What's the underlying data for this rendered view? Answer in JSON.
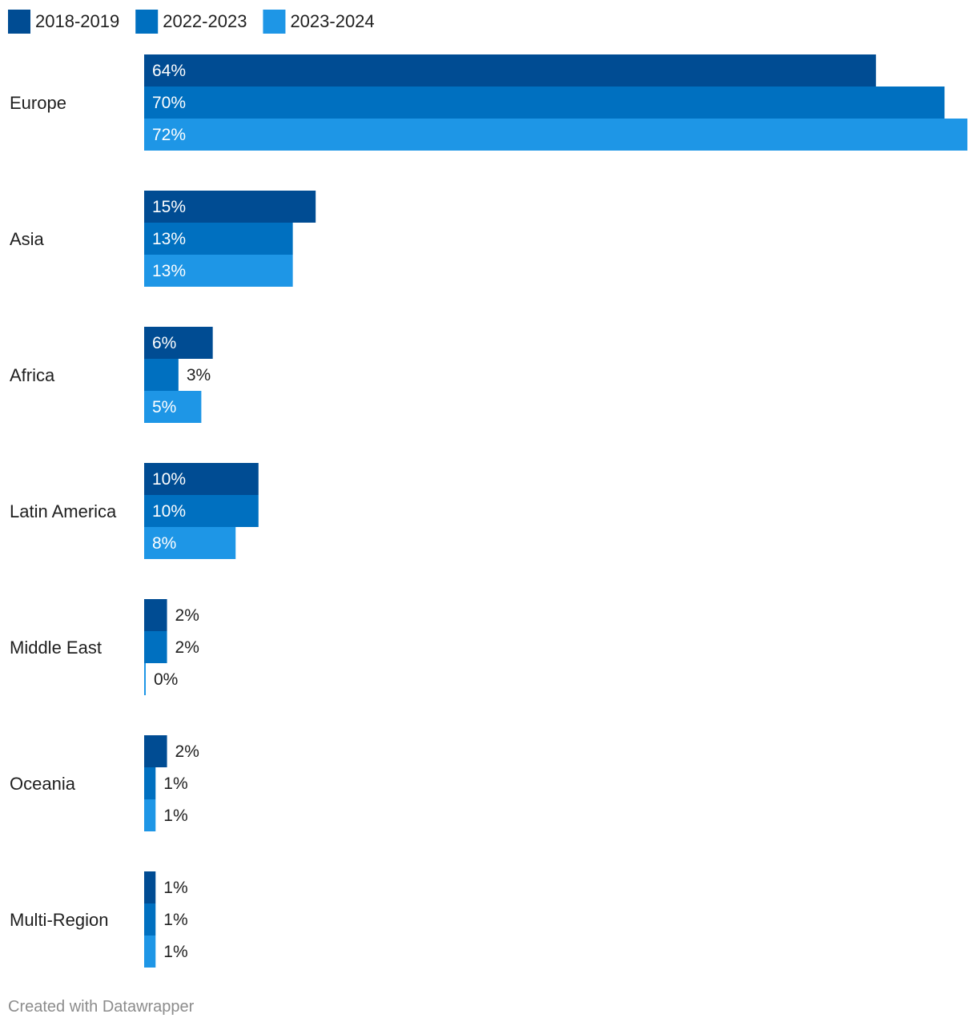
{
  "colors": {
    "2018-2019": "#004c93",
    "2022-2023": "#0070c0",
    "2023-2024": "#1e96e6",
    "label_inside": "#ffffff",
    "label_outside": "#1f1f1f"
  },
  "chart_data": {
    "type": "bar",
    "orientation": "horizontal",
    "categories": [
      "Europe",
      "Asia",
      "Africa",
      "Latin America",
      "Middle East",
      "Oceania",
      "Multi-Region"
    ],
    "series": [
      {
        "name": "2018-2019",
        "values": [
          64,
          15,
          6,
          10,
          2,
          2,
          1
        ]
      },
      {
        "name": "2022-2023",
        "values": [
          70,
          13,
          3,
          10,
          2,
          1,
          1
        ]
      },
      {
        "name": "2023-2024",
        "values": [
          72,
          13,
          5,
          8,
          0,
          1,
          1
        ]
      }
    ],
    "value_labels": [
      [
        "64%",
        "15%",
        "6%",
        "10%",
        "2%",
        "2%",
        "1%"
      ],
      [
        "70%",
        "13%",
        "3%",
        "10%",
        "2%",
        "1%",
        "1%"
      ],
      [
        "72%",
        "13%",
        "5%",
        "8%",
        "0%",
        "1%",
        "1%"
      ]
    ],
    "value_suffix": "%",
    "xlim": [
      0,
      72
    ],
    "grid": false,
    "legend_position": "top-left"
  },
  "footer": {
    "credit": "Created with Datawrapper"
  }
}
